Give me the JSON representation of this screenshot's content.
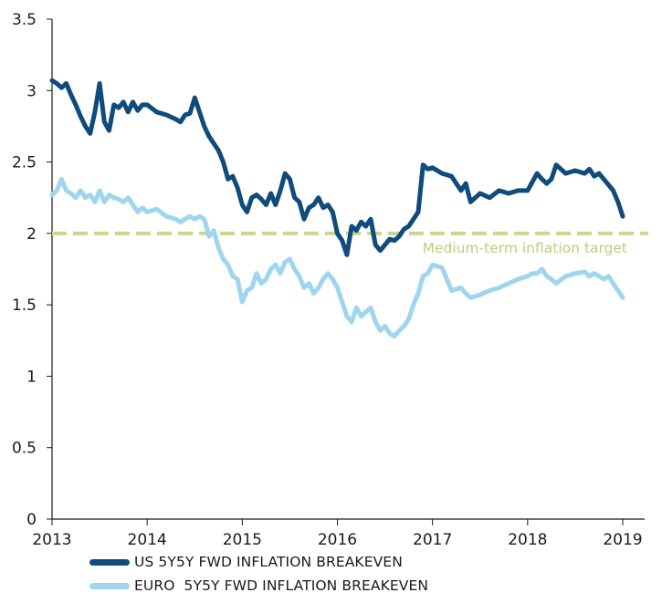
{
  "chart_data": {
    "type": "line",
    "xlim": [
      2013,
      2019
    ],
    "ylim": [
      0,
      3.5
    ],
    "x_ticks": [
      2013,
      2014,
      2015,
      2016,
      2017,
      2018,
      2019
    ],
    "x_tick_labels": [
      "2013",
      "2014",
      "2015",
      "2016",
      "2017",
      "2018",
      "2019"
    ],
    "y_ticks": [
      0,
      0.5,
      1,
      1.5,
      2,
      2.5,
      3,
      3.5
    ],
    "y_tick_labels": [
      "0",
      "0.5",
      "1",
      "1.5",
      "2",
      "2.5",
      "3",
      "3.5"
    ],
    "legend_position": "bottom-left",
    "reference_line": {
      "y": 2.0,
      "label": "Medium-term inflation target",
      "color": "#c6d98e"
    },
    "series": [
      {
        "name": "US 5Y5Y FWD INFLATION BREAKEVEN",
        "color": "#0f4c7d",
        "x": [
          2013.0,
          2013.05,
          2013.1,
          2013.15,
          2013.2,
          2013.25,
          2013.3,
          2013.35,
          2013.4,
          2013.45,
          2013.5,
          2013.55,
          2013.6,
          2013.65,
          2013.7,
          2013.75,
          2013.8,
          2013.85,
          2013.9,
          2013.95,
          2014.0,
          2014.1,
          2014.2,
          2014.3,
          2014.35,
          2014.4,
          2014.45,
          2014.5,
          2014.55,
          2014.6,
          2014.65,
          2014.7,
          2014.75,
          2014.8,
          2014.85,
          2014.9,
          2014.95,
          2015.0,
          2015.05,
          2015.1,
          2015.15,
          2015.2,
          2015.25,
          2015.3,
          2015.35,
          2015.4,
          2015.45,
          2015.5,
          2015.55,
          2015.6,
          2015.65,
          2015.7,
          2015.75,
          2015.8,
          2015.85,
          2015.9,
          2015.95,
          2016.0,
          2016.05,
          2016.1,
          2016.15,
          2016.2,
          2016.25,
          2016.3,
          2016.35,
          2016.4,
          2016.45,
          2016.5,
          2016.55,
          2016.6,
          2016.65,
          2016.7,
          2016.75,
          2016.8,
          2016.85,
          2016.9,
          2016.95,
          2017.0,
          2017.1,
          2017.2,
          2017.3,
          2017.35,
          2017.4,
          2017.5,
          2017.6,
          2017.7,
          2017.8,
          2017.9,
          2018.0,
          2018.05,
          2018.1,
          2018.15,
          2018.2,
          2018.25,
          2018.3,
          2018.4,
          2018.5,
          2018.6,
          2018.65,
          2018.7,
          2018.75,
          2018.8,
          2018.85,
          2018.9,
          2018.95,
          2019.0
        ],
        "values": [
          3.07,
          3.05,
          3.02,
          3.05,
          2.97,
          2.9,
          2.82,
          2.75,
          2.7,
          2.85,
          3.05,
          2.78,
          2.72,
          2.9,
          2.88,
          2.92,
          2.85,
          2.92,
          2.86,
          2.9,
          2.9,
          2.85,
          2.83,
          2.8,
          2.78,
          2.83,
          2.84,
          2.95,
          2.85,
          2.75,
          2.68,
          2.63,
          2.58,
          2.5,
          2.38,
          2.4,
          2.32,
          2.2,
          2.15,
          2.25,
          2.27,
          2.24,
          2.2,
          2.28,
          2.2,
          2.3,
          2.42,
          2.38,
          2.25,
          2.22,
          2.1,
          2.18,
          2.2,
          2.25,
          2.18,
          2.2,
          2.15,
          2.0,
          1.95,
          1.85,
          2.05,
          2.02,
          2.08,
          2.05,
          2.1,
          1.92,
          1.88,
          1.92,
          1.96,
          1.95,
          1.98,
          2.03,
          2.05,
          2.1,
          2.15,
          2.48,
          2.45,
          2.46,
          2.42,
          2.4,
          2.3,
          2.35,
          2.22,
          2.28,
          2.25,
          2.3,
          2.28,
          2.3,
          2.3,
          2.36,
          2.42,
          2.38,
          2.35,
          2.38,
          2.48,
          2.42,
          2.44,
          2.42,
          2.45,
          2.4,
          2.42,
          2.38,
          2.34,
          2.3,
          2.22,
          2.12
        ]
      },
      {
        "name": "EURO  5Y5Y FWD INFLATION BREAKEVEN",
        "color": "#9fd6ee",
        "x": [
          2013.0,
          2013.05,
          2013.1,
          2013.15,
          2013.2,
          2013.25,
          2013.3,
          2013.35,
          2013.4,
          2013.45,
          2013.5,
          2013.55,
          2013.6,
          2013.65,
          2013.7,
          2013.75,
          2013.8,
          2013.85,
          2013.9,
          2013.95,
          2014.0,
          2014.1,
          2014.2,
          2014.3,
          2014.35,
          2014.4,
          2014.45,
          2014.5,
          2014.55,
          2014.6,
          2014.65,
          2014.7,
          2014.75,
          2014.8,
          2014.85,
          2014.9,
          2014.95,
          2015.0,
          2015.05,
          2015.1,
          2015.15,
          2015.2,
          2015.25,
          2015.3,
          2015.35,
          2015.4,
          2015.45,
          2015.5,
          2015.55,
          2015.6,
          2015.65,
          2015.7,
          2015.75,
          2015.8,
          2015.85,
          2015.9,
          2015.95,
          2016.0,
          2016.05,
          2016.1,
          2016.15,
          2016.2,
          2016.25,
          2016.3,
          2016.35,
          2016.4,
          2016.45,
          2016.5,
          2016.55,
          2016.6,
          2016.65,
          2016.7,
          2016.75,
          2016.8,
          2016.85,
          2016.9,
          2016.95,
          2017.0,
          2017.1,
          2017.2,
          2017.3,
          2017.35,
          2017.4,
          2017.5,
          2017.6,
          2017.7,
          2017.8,
          2017.9,
          2018.0,
          2018.05,
          2018.1,
          2018.15,
          2018.2,
          2018.25,
          2018.3,
          2018.4,
          2018.5,
          2018.6,
          2018.65,
          2018.7,
          2018.75,
          2018.8,
          2018.85,
          2018.9,
          2018.95,
          2019.0
        ],
        "values": [
          2.27,
          2.3,
          2.38,
          2.3,
          2.28,
          2.25,
          2.3,
          2.25,
          2.27,
          2.22,
          2.3,
          2.22,
          2.27,
          2.25,
          2.24,
          2.22,
          2.25,
          2.2,
          2.15,
          2.18,
          2.15,
          2.17,
          2.12,
          2.1,
          2.08,
          2.1,
          2.12,
          2.1,
          2.12,
          2.1,
          1.98,
          2.02,
          1.9,
          1.82,
          1.78,
          1.7,
          1.68,
          1.52,
          1.6,
          1.62,
          1.72,
          1.65,
          1.68,
          1.75,
          1.78,
          1.72,
          1.8,
          1.82,
          1.75,
          1.7,
          1.62,
          1.65,
          1.58,
          1.62,
          1.68,
          1.72,
          1.68,
          1.62,
          1.52,
          1.42,
          1.38,
          1.48,
          1.42,
          1.45,
          1.48,
          1.38,
          1.32,
          1.35,
          1.3,
          1.28,
          1.32,
          1.35,
          1.4,
          1.5,
          1.58,
          1.7,
          1.72,
          1.78,
          1.76,
          1.6,
          1.62,
          1.58,
          1.55,
          1.57,
          1.6,
          1.62,
          1.65,
          1.68,
          1.7,
          1.72,
          1.72,
          1.75,
          1.7,
          1.68,
          1.65,
          1.7,
          1.72,
          1.73,
          1.7,
          1.72,
          1.7,
          1.68,
          1.7,
          1.65,
          1.6,
          1.55
        ]
      }
    ]
  }
}
